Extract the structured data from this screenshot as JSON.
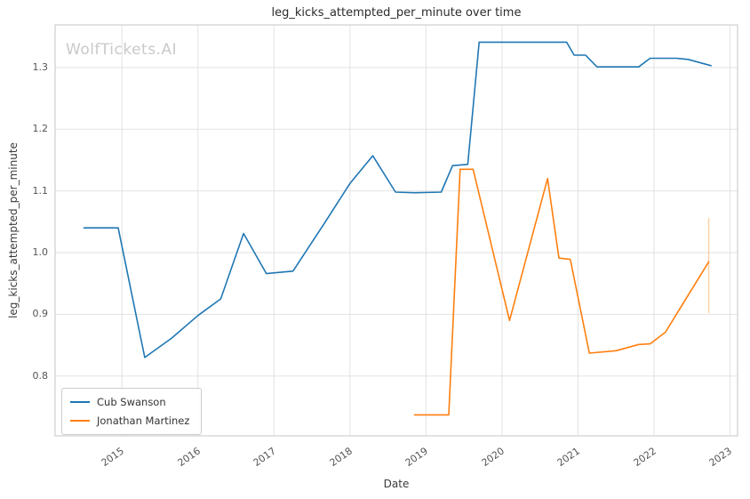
{
  "watermark": "WolfTickets.AI",
  "chart_data": {
    "type": "line",
    "title": "leg_kicks_attempted_per_minute over time",
    "xlabel": "Date",
    "ylabel": "leg_kicks_attempted_per_minute",
    "xlim": [
      2014.12,
      2023.1
    ],
    "ylim": [
      0.703,
      1.369
    ],
    "x_ticks": [
      2015,
      2016,
      2017,
      2018,
      2019,
      2020,
      2021,
      2022,
      2023
    ],
    "y_ticks": [
      0.8,
      0.9,
      1.0,
      1.1,
      1.2,
      1.3
    ],
    "grid": true,
    "legend_position": "lower left",
    "series": [
      {
        "name": "Cub Swanson",
        "color": "#1f77b4",
        "points": [
          [
            2014.5,
            1.04
          ],
          [
            2014.95,
            1.04
          ],
          [
            2015.3,
            0.83
          ],
          [
            2015.65,
            0.861
          ],
          [
            2016.0,
            0.898
          ],
          [
            2016.3,
            0.925
          ],
          [
            2016.6,
            1.031
          ],
          [
            2016.9,
            0.966
          ],
          [
            2017.25,
            0.97
          ],
          [
            2017.65,
            1.045
          ],
          [
            2018.0,
            1.112
          ],
          [
            2018.3,
            1.157
          ],
          [
            2018.6,
            1.098
          ],
          [
            2018.85,
            1.097
          ],
          [
            2019.2,
            1.098
          ],
          [
            2019.35,
            1.141
          ],
          [
            2019.55,
            1.143
          ],
          [
            2019.7,
            1.341
          ],
          [
            2020.85,
            1.341
          ],
          [
            2020.95,
            1.32
          ],
          [
            2021.1,
            1.32
          ],
          [
            2021.25,
            1.301
          ],
          [
            2021.8,
            1.301
          ],
          [
            2021.95,
            1.315
          ],
          [
            2022.3,
            1.315
          ],
          [
            2022.45,
            1.313
          ],
          [
            2022.75,
            1.303
          ]
        ]
      },
      {
        "name": "Jonathan Martinez",
        "color": "#ff7f0e",
        "points": [
          [
            2018.85,
            0.737
          ],
          [
            2019.3,
            0.737
          ],
          [
            2019.45,
            1.135
          ],
          [
            2019.62,
            1.135
          ],
          [
            2020.1,
            0.89
          ],
          [
            2020.6,
            1.12
          ],
          [
            2020.75,
            0.991
          ],
          [
            2020.9,
            0.989
          ],
          [
            2021.15,
            0.837
          ],
          [
            2021.5,
            0.841
          ],
          [
            2021.8,
            0.851
          ],
          [
            2021.95,
            0.852
          ],
          [
            2022.15,
            0.871
          ],
          [
            2022.72,
            0.985
          ]
        ]
      }
    ],
    "annotations": [
      {
        "type": "vertical-segment",
        "x": 2022.72,
        "y_from": 0.902,
        "y_to": 1.056,
        "color": "#ff7f0e",
        "opacity": 0.35
      }
    ]
  }
}
